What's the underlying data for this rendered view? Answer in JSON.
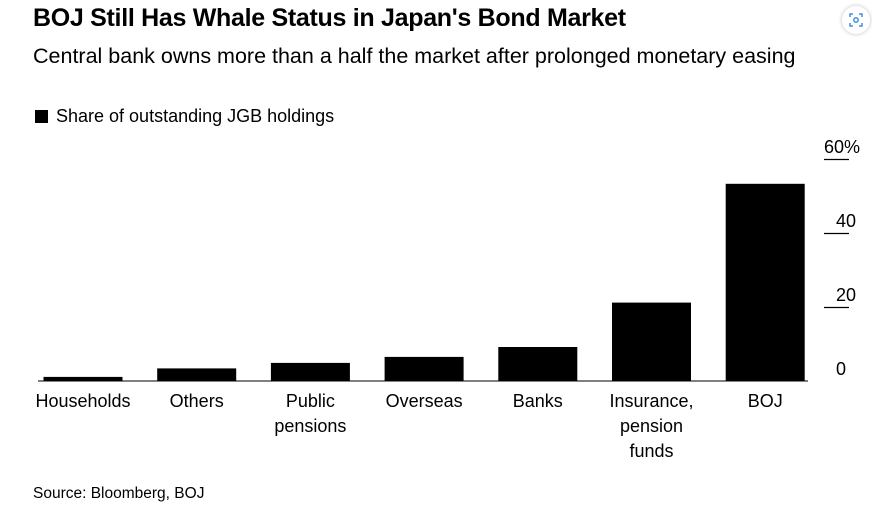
{
  "header": {
    "title": "BOJ Still Has Whale Status in Japan's Bond Market",
    "subtitle": "Central bank owns more than a half the market after prolonged monetary easing"
  },
  "legend": {
    "label": "Share of outstanding JGB holdings"
  },
  "footer": {
    "source": "Source: Bloomberg, BOJ"
  },
  "colors": {
    "bar": "#000000",
    "axis": "#000000"
  },
  "icons": {
    "expand": "expand-icon"
  },
  "chart_data": {
    "type": "bar",
    "categories": [
      [
        "Households"
      ],
      [
        "Others"
      ],
      [
        "Public",
        "pensions"
      ],
      [
        "Overseas"
      ],
      [
        "Banks"
      ],
      [
        "Insurance,",
        "pension",
        "funds"
      ],
      [
        "BOJ"
      ]
    ],
    "values": [
      1.1,
      3.4,
      4.9,
      6.5,
      9.2,
      21.2,
      53.3
    ],
    "ylim": [
      0,
      60
    ],
    "yticks": [
      0,
      20,
      40,
      60
    ],
    "ytick_labels": [
      "0",
      "20",
      "40",
      "60%"
    ],
    "title": "BOJ Still Has Whale Status in Japan's Bond Market",
    "legend": "Share of outstanding JGB holdings",
    "legend_position": "top-left",
    "axis_position": "right",
    "grid": false
  }
}
